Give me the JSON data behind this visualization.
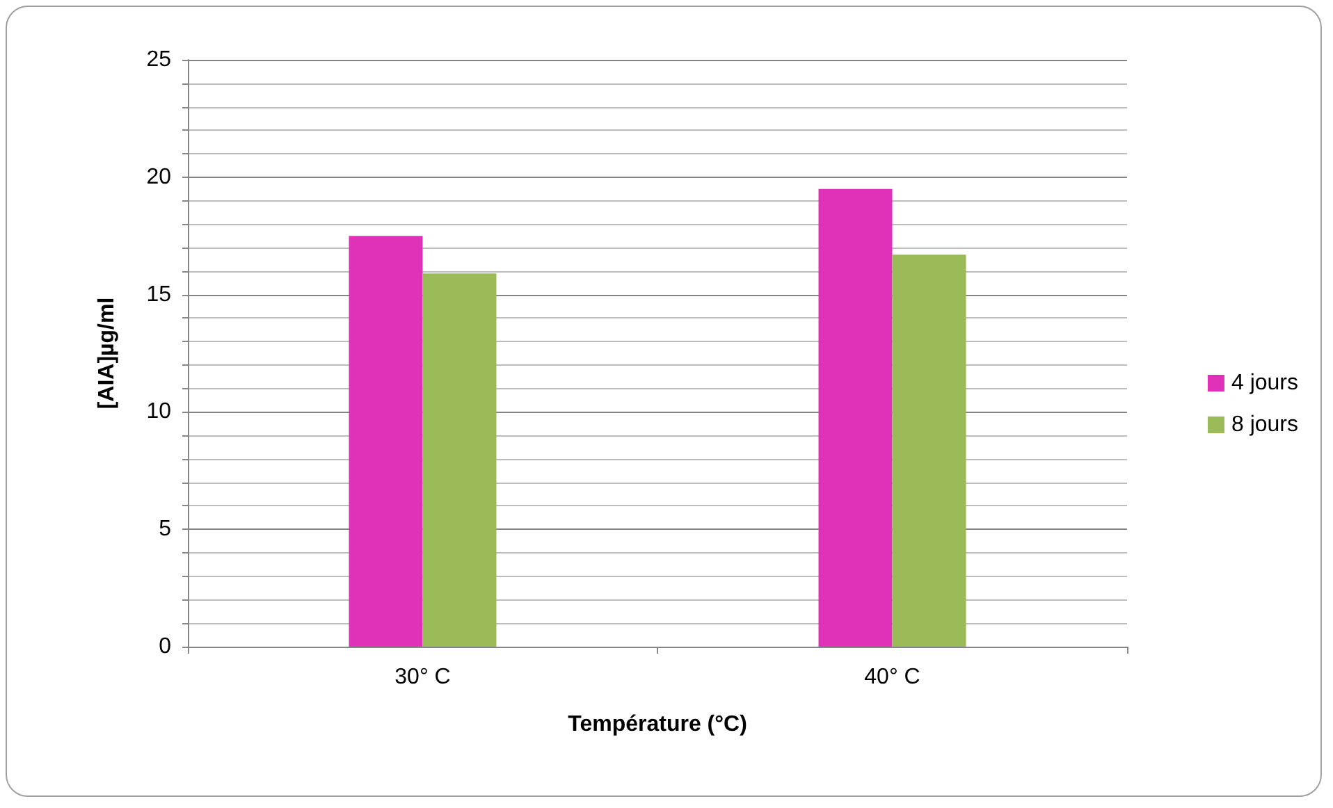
{
  "chart_data": {
    "type": "bar",
    "xlabel": "Température (°C)",
    "ylabel": "[AIA]µg/ml",
    "categories": [
      "30° C",
      "40° C"
    ],
    "series": [
      {
        "name": "4 jours",
        "color": "#e032b8",
        "values": [
          17.5,
          19.5
        ]
      },
      {
        "name": "8 jours",
        "color": "#9bbb59",
        "values": [
          15.9,
          16.7
        ]
      }
    ],
    "ylim": [
      0,
      25
    ],
    "yticks": [
      0,
      {
        "value": 1,
        "label": null
      },
      {
        "value": 2,
        "label": null
      },
      {
        "value": 3,
        "label": null
      },
      {
        "value": 4,
        "label": null
      },
      5,
      {
        "value": 6,
        "label": null
      },
      {
        "value": 7,
        "label": null
      },
      {
        "value": 8,
        "label": null
      },
      {
        "value": 9,
        "label": null
      },
      10,
      {
        "value": 11,
        "label": null
      },
      {
        "value": 12,
        "label": null
      },
      {
        "value": 13,
        "label": null
      },
      {
        "value": 14,
        "label": null
      },
      15,
      {
        "value": 16,
        "label": null
      },
      {
        "value": 17,
        "label": null
      },
      {
        "value": 18,
        "label": null
      },
      {
        "value": 19,
        "label": null
      },
      20,
      {
        "value": 21,
        "label": null
      },
      {
        "value": 22,
        "label": null
      },
      {
        "value": 23,
        "label": null
      },
      {
        "value": 24,
        "label": null
      },
      25
    ],
    "grid": "y",
    "legend": "right"
  }
}
